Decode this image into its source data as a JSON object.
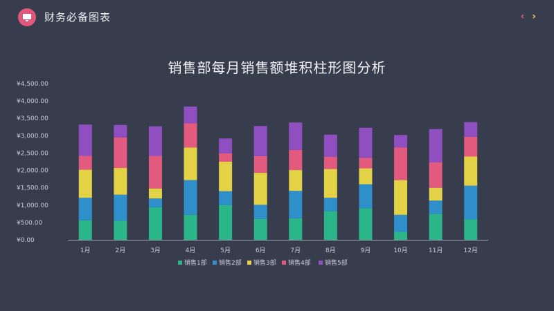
{
  "header": {
    "app_title": "财务必备图表",
    "logo_icon": "presentation-icon",
    "prev_icon": "chevron-left-icon",
    "next_icon": "chevron-right-icon",
    "prev_glyph": "‹",
    "next_glyph": "›"
  },
  "colors": {
    "background": "#383d4d",
    "accent_pink": "#e2587a",
    "accent_yellow": "#e7d54a"
  },
  "chart_data": {
    "type": "bar",
    "stacked": true,
    "title": "销售部每月销售额堆积柱形图分析",
    "categories": [
      "1月",
      "2月",
      "3月",
      "4月",
      "5月",
      "6月",
      "7月",
      "8月",
      "9月",
      "10月",
      "11月",
      "12月"
    ],
    "y_ticks": [
      "¥0.00",
      "¥500.00",
      "¥1,000.00",
      "¥1,500.00",
      "¥2,000.00",
      "¥2,500.00",
      "¥3,000.00",
      "¥3,500.00",
      "¥4,000.00",
      "¥4,500.00"
    ],
    "ylim": [
      0,
      4500
    ],
    "grid": false,
    "legend_position": "bottom",
    "series": [
      {
        "name": "销售1部",
        "color": "#2bb68a",
        "values": [
          560,
          550,
          940,
          720,
          1000,
          600,
          620,
          830,
          910,
          230,
          750,
          590
        ]
      },
      {
        "name": "销售2部",
        "color": "#2f8fcb",
        "values": [
          650,
          750,
          250,
          1000,
          400,
          410,
          790,
          380,
          690,
          490,
          380,
          970
        ]
      },
      {
        "name": "销售3部",
        "color": "#e3d146",
        "values": [
          810,
          770,
          290,
          940,
          850,
          920,
          600,
          830,
          460,
          1000,
          370,
          840
        ]
      },
      {
        "name": "销售4部",
        "color": "#e25b7e",
        "values": [
          400,
          880,
          940,
          700,
          240,
          480,
          580,
          350,
          300,
          940,
          730,
          570
        ]
      },
      {
        "name": "销售5部",
        "color": "#8f4fc0",
        "values": [
          900,
          360,
          850,
          480,
          430,
          870,
          790,
          640,
          870,
          360,
          960,
          420
        ]
      }
    ]
  }
}
